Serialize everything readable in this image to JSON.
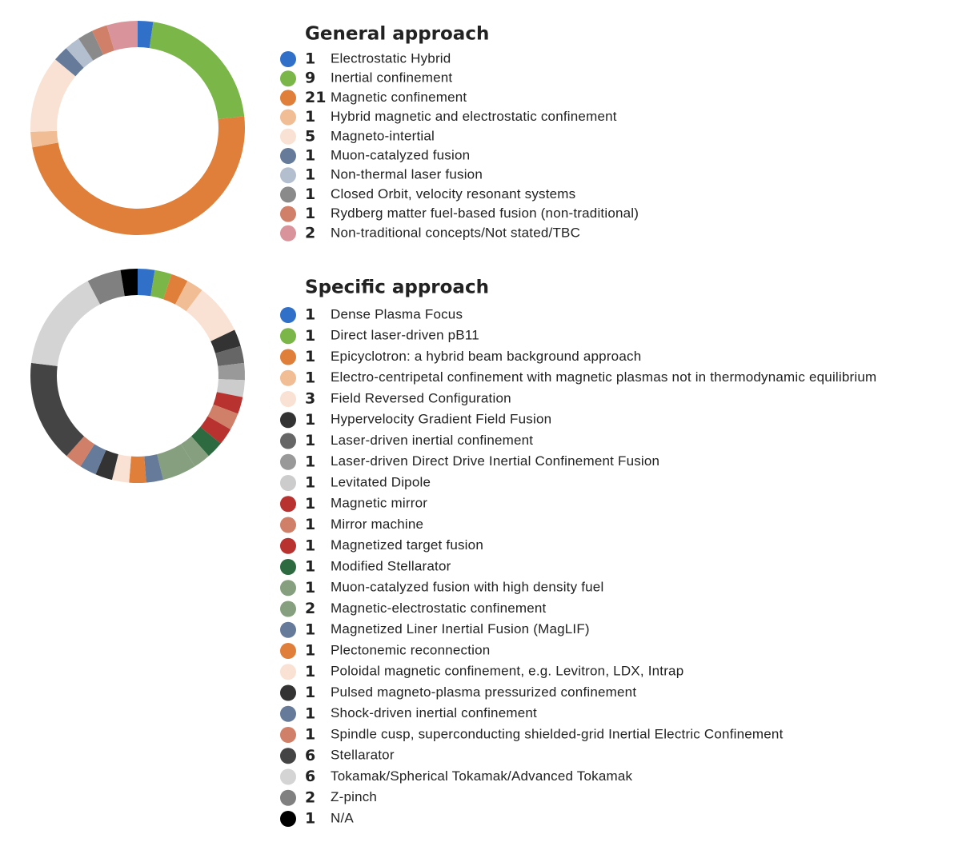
{
  "chart_data": [
    {
      "type": "donut",
      "title": "General approach",
      "categories": [
        "Electrostatic Hybrid",
        "Inertial confinement",
        "Magnetic confinement",
        "Hybrid magnetic and electrostatic confinement",
        "Magneto-intertial",
        "Muon-catalyzed fusion",
        "Non-thermal laser fusion",
        "Closed Orbit, velocity resonant systems",
        "Rydberg matter fuel-based fusion (non-traditional)",
        "Non-traditional concepts/Not stated/TBC"
      ],
      "values": [
        1,
        9,
        21,
        1,
        5,
        1,
        1,
        1,
        1,
        2
      ],
      "colors": [
        "#3070c8",
        "#7ab648",
        "#e07f3a",
        "#f0bd94",
        "#f9e2d3",
        "#667b99",
        "#b3bfcf",
        "#8a8a8a",
        "#d08068",
        "#d9939a"
      ]
    },
    {
      "type": "donut",
      "title": "Specific approach",
      "categories": [
        "Dense Plasma Focus",
        "Direct laser-driven pB11",
        "Epicyclotron: a hybrid beam background approach",
        "Electro-centripetal confinement with magnetic plasmas not in thermodynamic equilibrium",
        "Field Reversed Configuration",
        "Hypervelocity Gradient Field Fusion",
        "Laser-driven inertial confinement",
        "Laser-driven Direct Drive Inertial Confinement Fusion",
        "Levitated Dipole",
        "Magnetic mirror",
        "Mirror machine",
        "Magnetized target fusion",
        "Modified Stellarator",
        "Muon-catalyzed fusion with high density fuel",
        "Magnetic-electrostatic confinement",
        "Magnetized Liner Inertial Fusion (MagLIF)",
        "Plectonemic reconnection",
        "Poloidal magnetic confinement, e.g. Levitron, LDX, Intrap",
        "Pulsed magneto-plasma pressurized confinement",
        "Shock-driven inertial confinement",
        "Spindle cusp, superconducting shielded-grid Inertial Electric Confinement",
        "Stellarator",
        "Tokamak/Spherical Tokamak/Advanced Tokamak",
        "Z-pinch",
        "N/A"
      ],
      "values": [
        1,
        1,
        1,
        1,
        3,
        1,
        1,
        1,
        1,
        1,
        1,
        1,
        1,
        1,
        2,
        1,
        1,
        1,
        1,
        1,
        1,
        6,
        6,
        2,
        1
      ],
      "colors": [
        "#3070c8",
        "#7ab648",
        "#e07f3a",
        "#f0bd94",
        "#f9e2d3",
        "#333333",
        "#666666",
        "#999999",
        "#cccccc",
        "#b83230",
        "#d08068",
        "#b83230",
        "#2d6a40",
        "#86a07f",
        "#86a07f",
        "#667b99",
        "#e07f3a",
        "#f9e2d3",
        "#333333",
        "#667b99",
        "#d08068",
        "#444444",
        "#d4d4d4",
        "#808080",
        "#000000"
      ]
    }
  ]
}
